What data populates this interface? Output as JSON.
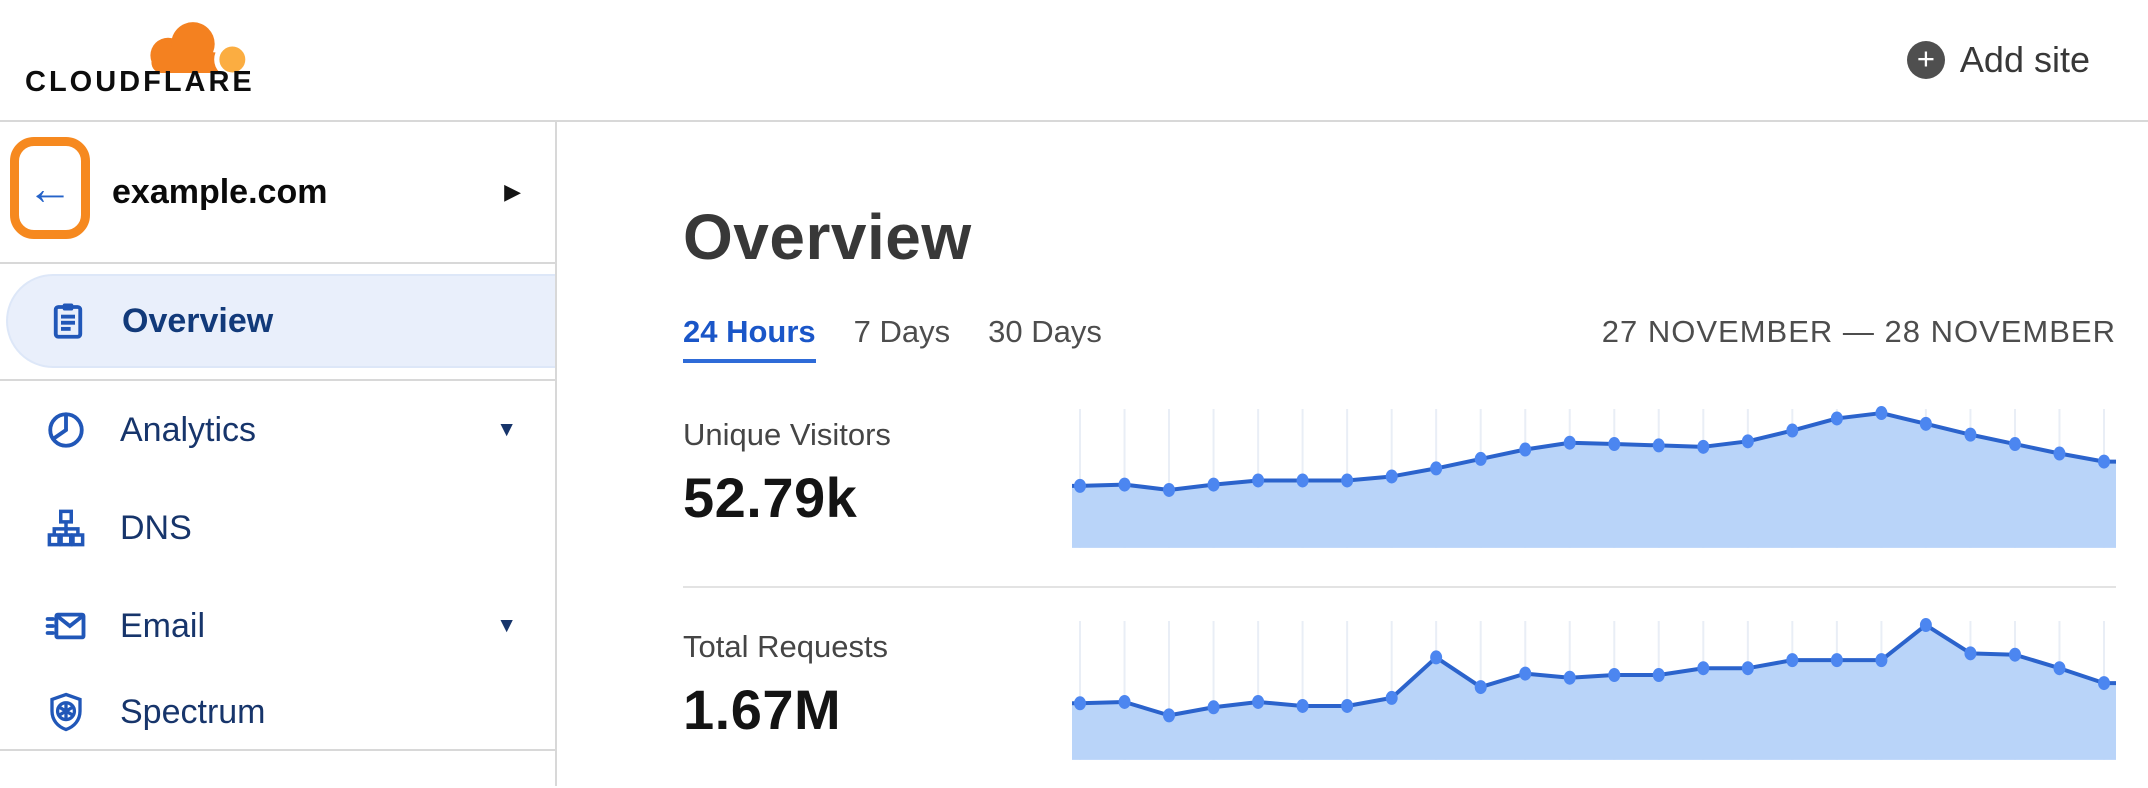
{
  "header": {
    "logo_text": "CLOUDFLARE",
    "add_site_label": "Add site"
  },
  "sidebar": {
    "site_name": "example.com",
    "items": [
      {
        "label": "Overview",
        "icon": "clipboard-icon",
        "active": true,
        "expandable": false
      },
      {
        "label": "Analytics",
        "icon": "pie-chart-icon",
        "active": false,
        "expandable": true
      },
      {
        "label": "DNS",
        "icon": "sitemap-icon",
        "active": false,
        "expandable": false
      },
      {
        "label": "Email",
        "icon": "envelope-icon",
        "active": false,
        "expandable": true
      },
      {
        "label": "Spectrum",
        "icon": "shield-icon",
        "active": false,
        "expandable": false
      }
    ]
  },
  "main": {
    "title": "Overview",
    "tabs": [
      {
        "label": "24 Hours",
        "active": true
      },
      {
        "label": "7 Days",
        "active": false
      },
      {
        "label": "30 Days",
        "active": false
      }
    ],
    "date_range": "27 NOVEMBER — 28 NOVEMBER",
    "metrics": [
      {
        "label": "Unique Visitors",
        "value": "52.79k"
      },
      {
        "label": "Total Requests",
        "value": "1.67M"
      }
    ]
  },
  "chart_data": [
    {
      "type": "area",
      "title": "Unique Visitors",
      "headline_total": "52.79k",
      "period": "24 Hours (27 November — 28 November)",
      "x": [
        1,
        2,
        3,
        4,
        5,
        6,
        7,
        8,
        9,
        10,
        11,
        12,
        13,
        14,
        15,
        16,
        17,
        18,
        19,
        20,
        21,
        22,
        23,
        24
      ],
      "xlabel": "",
      "ylabel": "",
      "axis_labels_visible": false,
      "values_unit": "relative height, % of series max (no y-axis shown in chart)",
      "values": [
        46,
        47,
        43,
        47,
        50,
        50,
        50,
        53,
        59,
        66,
        73,
        78,
        77,
        76,
        75,
        79,
        87,
        96,
        100,
        92,
        84,
        77,
        70,
        64
      ],
      "ylim": [
        0,
        110
      ],
      "grid": "vertical gridlines at each point",
      "legend_position": "none"
    },
    {
      "type": "area",
      "title": "Total Requests",
      "headline_total": "1.67M",
      "period": "24 Hours (27 November — 28 November)",
      "x": [
        1,
        2,
        3,
        4,
        5,
        6,
        7,
        8,
        9,
        10,
        11,
        12,
        13,
        14,
        15,
        16,
        17,
        18,
        19,
        20,
        21,
        22,
        23,
        24
      ],
      "xlabel": "",
      "ylabel": "",
      "axis_labels_visible": false,
      "values_unit": "relative height, % of series max (no y-axis shown in chart)",
      "values": [
        42,
        43,
        33,
        39,
        43,
        40,
        40,
        46,
        76,
        54,
        64,
        61,
        63,
        63,
        68,
        68,
        74,
        74,
        74,
        100,
        79,
        78,
        68,
        57
      ],
      "ylim": [
        0,
        110
      ],
      "grid": "vertical gridlines at each point",
      "legend_position": "none"
    }
  ],
  "colors": {
    "brand_orange": "#f48120",
    "brand_orange_light": "#fbad41",
    "annotation_highlight_orange": "#f6891f",
    "link_blue": "#1a56c8",
    "nav_icon_blue": "#2157b8",
    "nav_text_navy": "#17356b",
    "active_item_bg": "#e9effb",
    "chart_line": "#2b63cc",
    "chart_dot": "#4c86f0",
    "chart_fill": "#b9d4f9",
    "chart_grid": "#e9eef6",
    "divider_gray": "#d8d8d8"
  }
}
